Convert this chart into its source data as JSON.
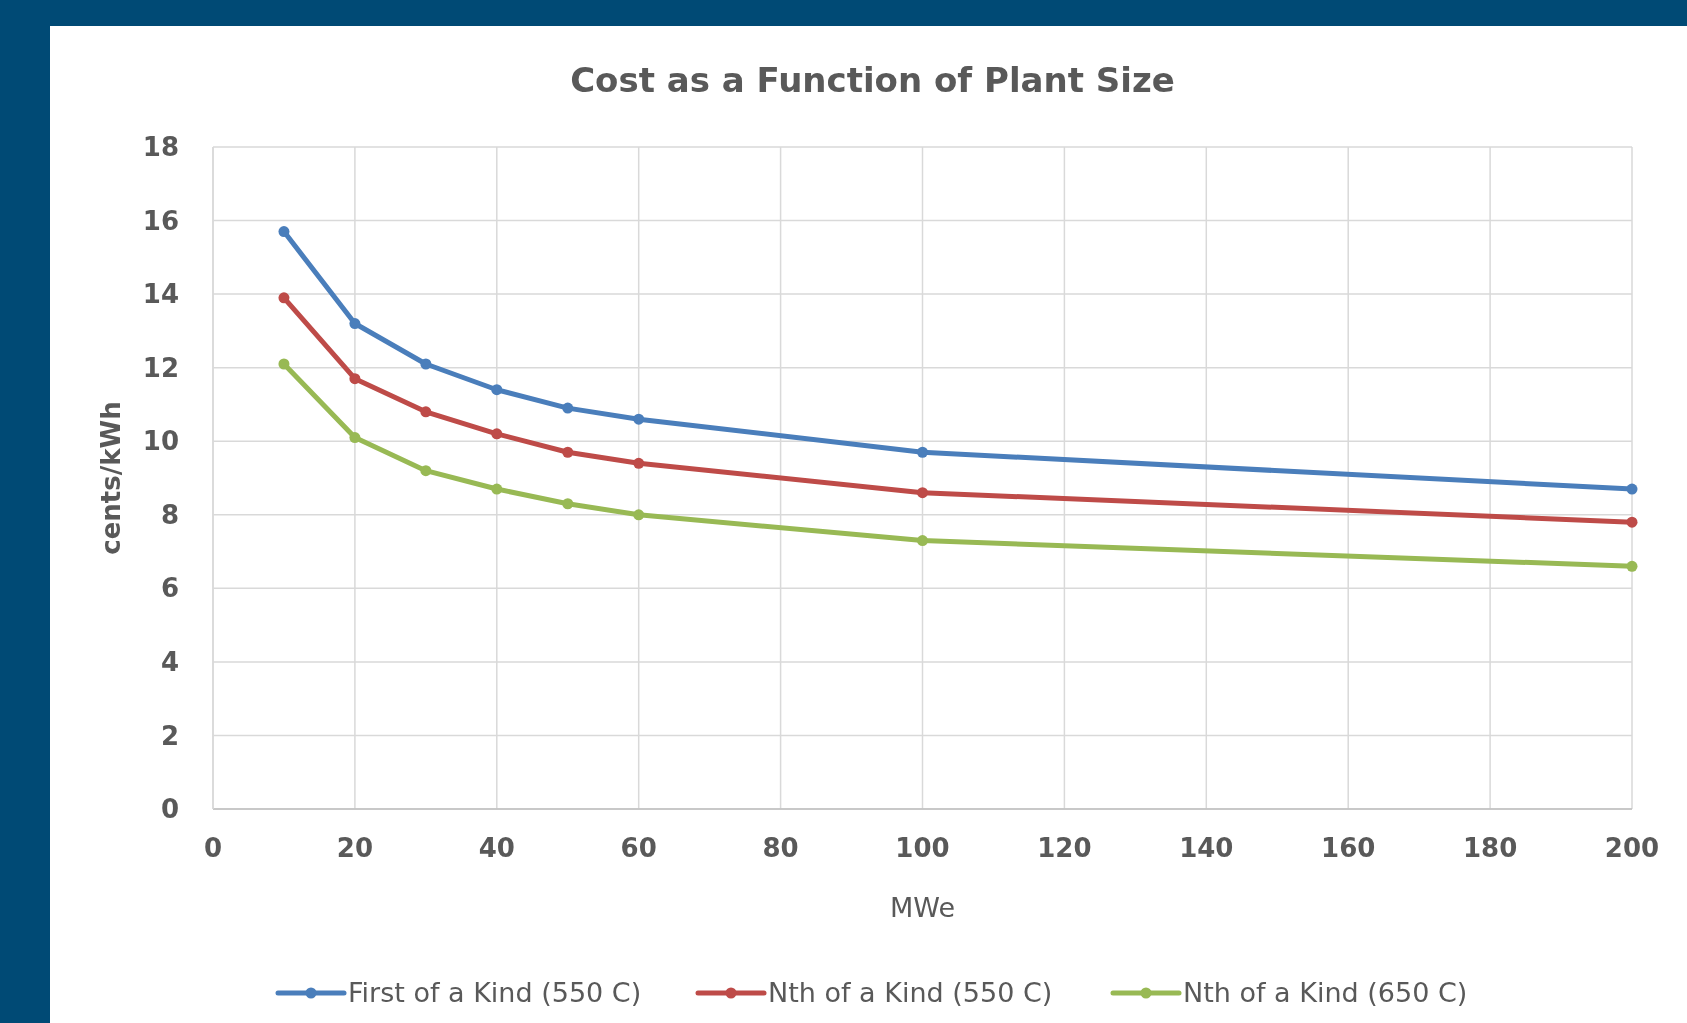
{
  "chart_data": {
    "type": "line",
    "title": "Cost as a Function of Plant Size",
    "xlabel": "MWe",
    "ylabel": "cents/kWh",
    "x": [
      10,
      20,
      30,
      40,
      50,
      60,
      100,
      200
    ],
    "series": [
      {
        "name": "First of a Kind (550 C)",
        "color": "#4a7ebb",
        "values": [
          15.7,
          13.2,
          12.1,
          11.4,
          10.9,
          10.6,
          9.7,
          8.7
        ]
      },
      {
        "name": "Nth of a Kind (550 C)",
        "color": "#be4b48",
        "values": [
          13.9,
          11.7,
          10.8,
          10.2,
          9.7,
          9.4,
          8.6,
          7.8
        ]
      },
      {
        "name": "Nth of a Kind (650 C)",
        "color": "#98b954",
        "values": [
          12.1,
          10.1,
          9.2,
          8.7,
          8.3,
          8.0,
          7.3,
          6.6
        ]
      }
    ],
    "xlim": [
      0,
      200
    ],
    "xticks": [
      0,
      20,
      40,
      60,
      80,
      100,
      120,
      140,
      160,
      180,
      200
    ],
    "ylim": [
      0,
      18
    ],
    "yticks": [
      0,
      2,
      4,
      6,
      8,
      10,
      12,
      14,
      16,
      18
    ],
    "grid": true,
    "legend": "bottom",
    "marker": "circle",
    "line_style": "solid"
  }
}
